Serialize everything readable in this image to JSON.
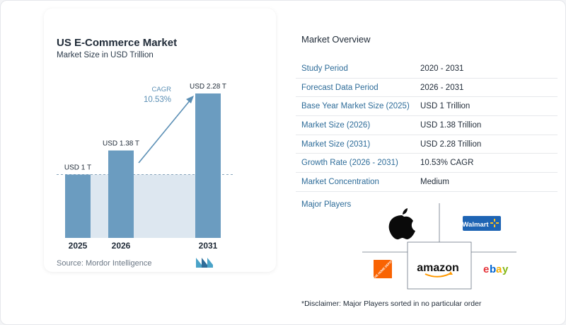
{
  "chart": {
    "title": "US E-Commerce Market",
    "subtitle": "Market Size in USD Trillion",
    "source": "Source: Mordor Intelligence",
    "cagr_label": "CAGR",
    "cagr_value": "10.53%"
  },
  "chart_data": {
    "type": "bar",
    "title": "US E-Commerce Market",
    "subtitle": "Market Size in USD Trillion",
    "categories": [
      "2025",
      "2026",
      "2031"
    ],
    "values": [
      1,
      1.38,
      2.28
    ],
    "data_labels": [
      "USD 1 T",
      "USD 1.38 T",
      "USD 2.28 T"
    ],
    "ylim": [
      0,
      2.28
    ],
    "grid": false,
    "colors": {
      "bar": "#6b9cc0",
      "shaded": "#dde7f0",
      "arrow": "#5b8fb5",
      "cagr": "#5b8fb5"
    }
  },
  "overview": {
    "title": "Market Overview",
    "rows": [
      {
        "label": "Study Period",
        "value": "2020 - 2031"
      },
      {
        "label": "Forecast Data Period",
        "value": "2026 - 2031"
      },
      {
        "label": "Base Year Market Size (2025)",
        "value": "USD 1 Trillion"
      },
      {
        "label": "Market Size (2026)",
        "value": "USD 1.38 Trillion"
      },
      {
        "label": "Market Size (2031)",
        "value": "USD 2.28 Trillion"
      },
      {
        "label": "Growth Rate (2026 - 2031)",
        "value": "10.53% CAGR"
      },
      {
        "label": "Market Concentration",
        "value": "Medium"
      }
    ],
    "major_players_label": "Major Players",
    "players": [
      "Apple",
      "Walmart",
      "The Home Depot",
      "Amazon",
      "eBay"
    ],
    "player_logo_text": {
      "walmart": "Walmart",
      "homedepot": "THE HOME DEPOT",
      "amazon": "amazon",
      "ebay_e": "e",
      "ebay_b": "b",
      "ebay_a": "a",
      "ebay_y": "y"
    },
    "disclaimer": "*Disclaimer: Major Players sorted in no particular order"
  }
}
